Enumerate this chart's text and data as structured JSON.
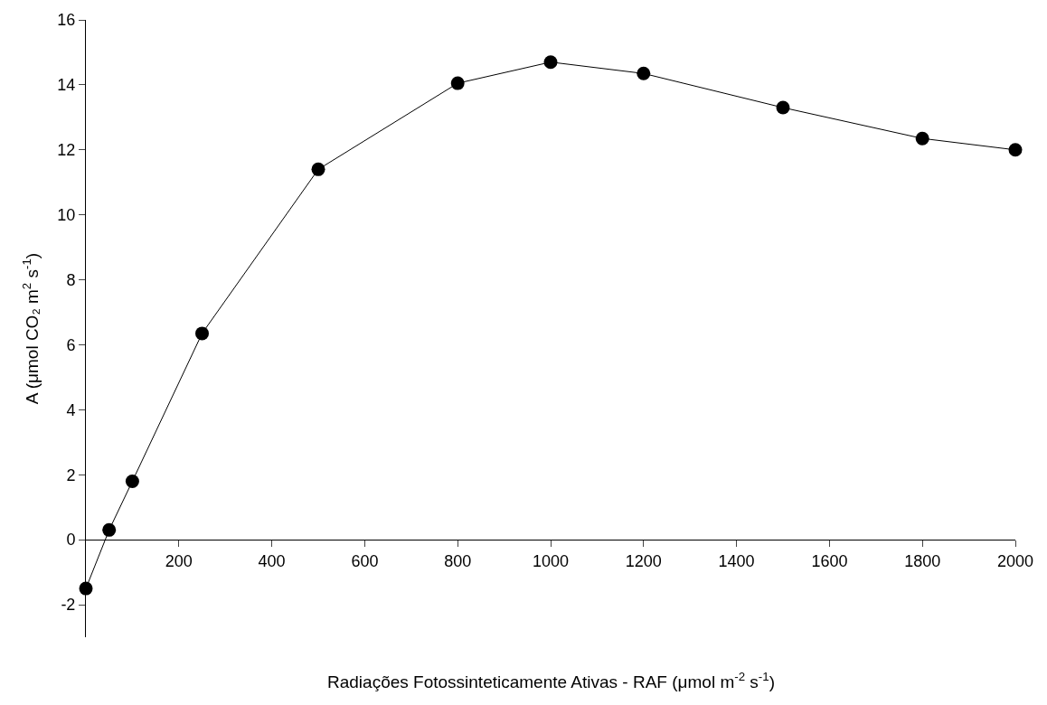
{
  "chart_data": {
    "type": "line",
    "xlabel": "Radiações Fotossinteticamente Ativas - RAF (μmol m$^{-2}$ s$^{-1}$)",
    "ylabel": "A (μmol CO₂ m$^{2}$ s$^{-1}$)",
    "x": [
      0,
      50,
      100,
      250,
      500,
      800,
      1000,
      1200,
      1500,
      1800,
      2000
    ],
    "series": [
      {
        "color": "#000000",
        "values": [
          -1.5,
          0.3,
          1.8,
          6.35,
          11.4,
          14.05,
          14.7,
          14.35,
          13.3,
          12.35,
          12.0
        ]
      }
    ],
    "xlim": [
      0,
      2000
    ],
    "xticks": [
      200,
      400,
      600,
      800,
      1000,
      1200,
      1400,
      1600,
      1800,
      2000
    ],
    "ylim": [
      -3,
      16
    ],
    "yticks": [
      -2,
      0,
      2,
      4,
      6,
      8,
      10,
      12,
      14,
      16
    ],
    "marker": "circle",
    "line_style": "solid"
  }
}
